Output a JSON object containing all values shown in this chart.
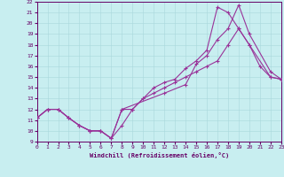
{
  "xlabel": "Windchill (Refroidissement éolien,°C)",
  "bg_color": "#c8eef0",
  "line_color": "#993399",
  "grid_color": "#a8d8dc",
  "spine_color": "#660066",
  "tick_color": "#660066",
  "xlim": [
    0,
    23
  ],
  "ylim": [
    9,
    22
  ],
  "xticks": [
    0,
    1,
    2,
    3,
    4,
    5,
    6,
    7,
    8,
    9,
    10,
    11,
    12,
    13,
    14,
    15,
    16,
    17,
    18,
    19,
    20,
    21,
    22,
    23
  ],
  "yticks": [
    9,
    10,
    11,
    12,
    13,
    14,
    15,
    16,
    17,
    18,
    19,
    20,
    21,
    22
  ],
  "line1_x": [
    0,
    1,
    2,
    3,
    4,
    5,
    6,
    7,
    8,
    9,
    10,
    11,
    12,
    13,
    14,
    15,
    16,
    17,
    18,
    19,
    20,
    21,
    22,
    23
  ],
  "line1_y": [
    11.2,
    12.0,
    12.0,
    11.2,
    10.5,
    10.0,
    10.0,
    9.3,
    10.5,
    12.0,
    13.0,
    13.5,
    14.0,
    14.5,
    15.0,
    15.5,
    16.0,
    16.5,
    18.0,
    19.5,
    18.0,
    16.0,
    15.0,
    14.8
  ],
  "line2_x": [
    0,
    1,
    2,
    3,
    4,
    5,
    6,
    7,
    8,
    9,
    10,
    11,
    12,
    13,
    14,
    15,
    16,
    17,
    18,
    19,
    20,
    22,
    23
  ],
  "line2_y": [
    11.2,
    12.0,
    12.0,
    11.2,
    10.5,
    10.0,
    10.0,
    9.3,
    12.0,
    12.0,
    13.0,
    14.0,
    14.5,
    14.8,
    15.8,
    16.5,
    17.5,
    21.5,
    21.0,
    19.5,
    18.0,
    15.0,
    14.8
  ],
  "line3_x": [
    0,
    1,
    2,
    3,
    4,
    5,
    6,
    7,
    8,
    12,
    14,
    15,
    16,
    17,
    18,
    19,
    20,
    22,
    23
  ],
  "line3_y": [
    11.2,
    12.0,
    12.0,
    11.2,
    10.5,
    10.0,
    10.0,
    9.3,
    12.0,
    13.5,
    14.3,
    16.2,
    17.0,
    18.5,
    19.5,
    21.7,
    19.0,
    15.5,
    14.8
  ]
}
